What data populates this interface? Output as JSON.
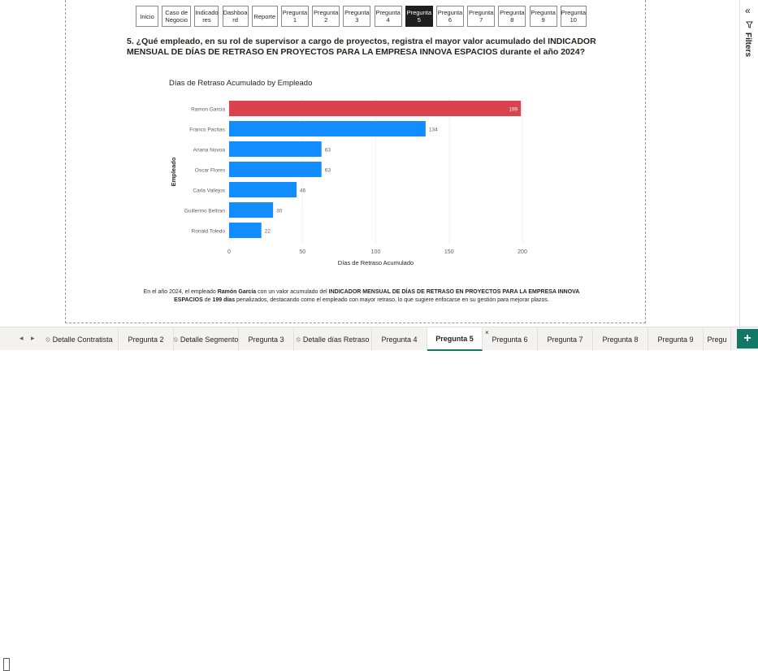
{
  "nav_buttons": [
    {
      "label": "Inicio",
      "active": false
    },
    {
      "label": "Caso de\nNegocio",
      "active": false
    },
    {
      "label": "Indicado\nres",
      "active": false
    },
    {
      "label": "Dashboa\nrd",
      "active": false
    },
    {
      "label": "Reporte",
      "active": false
    },
    {
      "label": "Pregunta\n1",
      "active": false
    },
    {
      "label": "Pregunta\n2",
      "active": false
    },
    {
      "label": "Pregunta\n3",
      "active": false
    },
    {
      "label": "Pregunta\n4",
      "active": false
    },
    {
      "label": "Pregunta\n5",
      "active": true
    },
    {
      "label": "Pregunta\n6",
      "active": false
    },
    {
      "label": "Pregunta\n7",
      "active": false
    },
    {
      "label": "Pregunta\n8",
      "active": false
    },
    {
      "label": "Pregunta\n9",
      "active": false
    },
    {
      "label": "Pregunta\n10",
      "active": false
    }
  ],
  "question": "5. ¿Qué empleado, en su rol de supervisor a cargo de proyectos, registra el mayor valor acumulado del INDICADOR MENSUAL DE DÍAS DE RETRASO EN PROYECTOS PARA LA EMPRESA INNOVA ESPACIOS durante el año 2024?",
  "chart_data": {
    "type": "bar",
    "orientation": "horizontal",
    "title": "Días de Retraso Acumulado by Empleado",
    "xlabel": "Días de Retraso Acumulado",
    "ylabel": "Empleado",
    "categories": [
      "Ramon Garcia",
      "Franco Pachas",
      "Ariana Novoa",
      "Oscar Flores",
      "Carla Vallejos",
      "Guillermo Beltran",
      "Ronald Toledo"
    ],
    "values": [
      199,
      134,
      63,
      63,
      46,
      30,
      22
    ],
    "bar_colors": [
      "#d9434f",
      "#118dff",
      "#118dff",
      "#118dff",
      "#118dff",
      "#118dff",
      "#118dff"
    ],
    "xlim": [
      0,
      200
    ],
    "xticks": [
      0,
      50,
      100,
      150,
      200
    ],
    "grid": true
  },
  "conclusion": {
    "p1": "En el año 2024, el empleado ",
    "b1": "Ramón García",
    "p2": " con un valor acumulado del ",
    "b2": "INDICADOR MENSUAL DE DÍAS DE RETRASO EN PROYECTOS PARA LA EMPRESA INNOVA ESPACIOS",
    "p3": " de ",
    "b3": "199 días",
    "p4": " penalizados, destacando como el empleado con mayor retraso, lo que sugiere enfocarse en su gestión para mejorar plazos."
  },
  "right_pane": {
    "collapse_icon": "double-chevron-left-icon",
    "filter_icon": "funnel-icon",
    "label": "Filters"
  },
  "tabs": [
    {
      "label": "Detalle Contratista",
      "hidden": true,
      "active": false
    },
    {
      "label": "Pregunta 2",
      "hidden": false,
      "active": false
    },
    {
      "label": "Detalle Segmento",
      "hidden": true,
      "active": false
    },
    {
      "label": "Pregunta 3",
      "hidden": false,
      "active": false
    },
    {
      "label": "Detalle días Retraso",
      "hidden": true,
      "active": false
    },
    {
      "label": "Pregunta 4",
      "hidden": false,
      "active": false
    },
    {
      "label": "Pregunta 5",
      "hidden": false,
      "active": true
    },
    {
      "label": "Pregunta 6",
      "hidden": false,
      "active": false
    },
    {
      "label": "Pregunta 7",
      "hidden": false,
      "active": false
    },
    {
      "label": "Pregunta 8",
      "hidden": false,
      "active": false
    },
    {
      "label": "Pregunta 9",
      "hidden": false,
      "active": false
    },
    {
      "label": "Pregu",
      "hidden": false,
      "active": false
    }
  ],
  "tab_close_glyph": "×",
  "add_tab_glyph": "+",
  "colors": {
    "accent": "#117865",
    "bar_primary": "#118dff",
    "bar_highlight": "#d9434f"
  }
}
